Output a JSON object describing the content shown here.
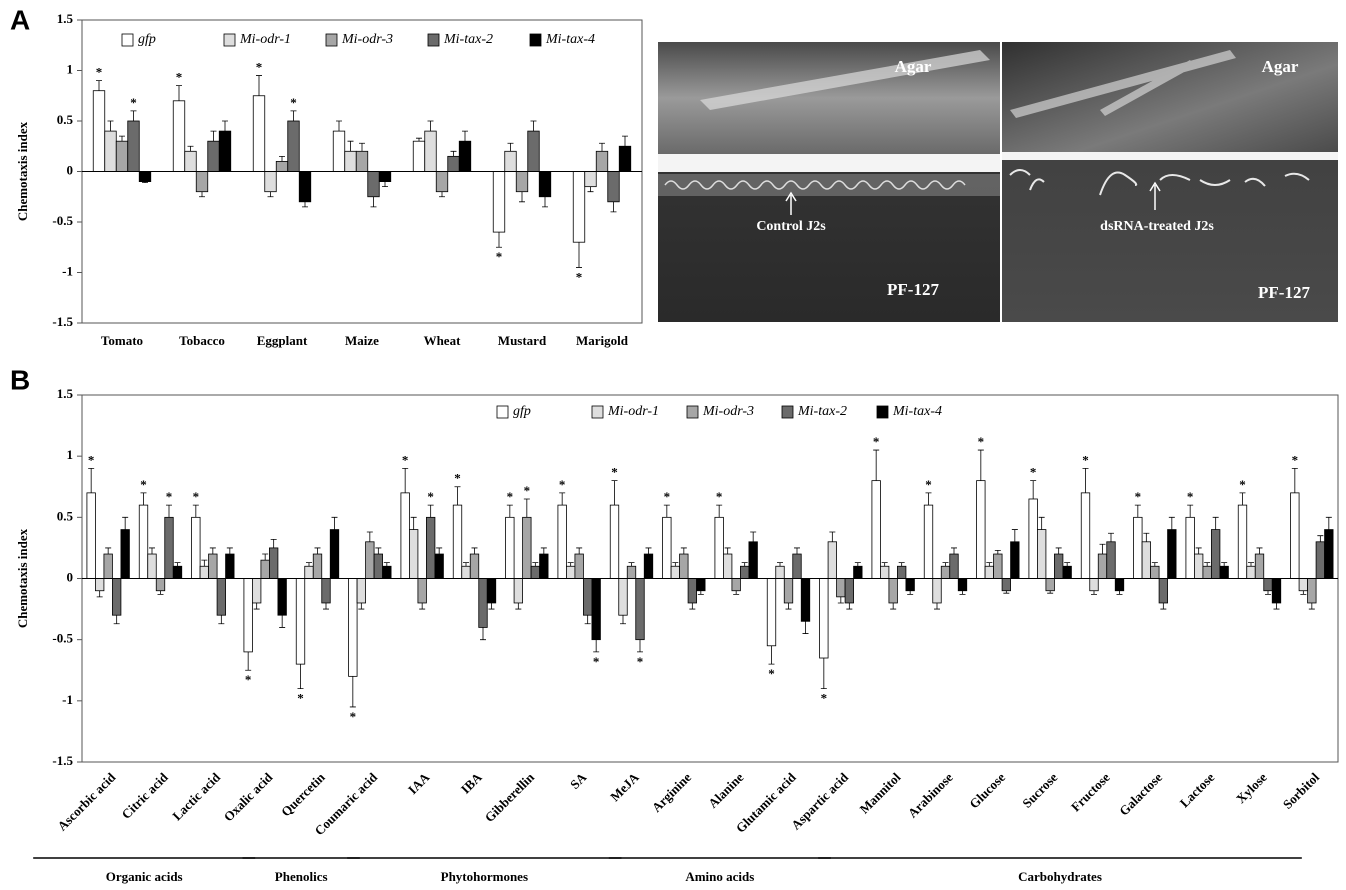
{
  "panel_labels": [
    "A",
    "B"
  ],
  "photo": {
    "left": {
      "top": "Agar",
      "arrow": "Control  J2s",
      "bottom": "PF-127"
    },
    "right": {
      "top": "Agar",
      "arrow": "dsRNA-treated J2s",
      "bottom": "PF-127"
    }
  },
  "chart_data": [
    {
      "type": "bar",
      "ylabel": "Chemotaxis index",
      "ylim": [
        -1.5,
        1.5
      ],
      "yticks": [
        1.5,
        1,
        0.5,
        0,
        -0.5,
        -1,
        -1.5
      ],
      "categories": [
        "Tomato",
        "Tobacco",
        "Eggplant",
        "Maize",
        "Wheat",
        "Mustard",
        "Marigold"
      ],
      "series": [
        {
          "name": "gfp",
          "color": "#ffffff",
          "values": [
            0.8,
            0.7,
            0.75,
            0.4,
            0.3,
            -0.6,
            -0.7
          ],
          "errors": [
            0.1,
            0.15,
            0.2,
            0.1,
            0.03,
            0.15,
            0.25
          ],
          "significance": [
            "*",
            "*",
            "*",
            null,
            null,
            "*",
            "*"
          ]
        },
        {
          "name": "Mi-odr-1",
          "color": "#dedede",
          "values": [
            0.4,
            0.2,
            -0.2,
            0.2,
            0.4,
            0.2,
            -0.15
          ],
          "errors": [
            0.1,
            0.05,
            0.05,
            0.1,
            0.1,
            0.08,
            0.05
          ],
          "significance": [
            null,
            null,
            null,
            null,
            null,
            null,
            null
          ]
        },
        {
          "name": "Mi-odr-3",
          "color": "#a6a6a6",
          "values": [
            0.3,
            -0.2,
            0.1,
            0.2,
            -0.2,
            -0.2,
            0.2
          ],
          "errors": [
            0.05,
            0.05,
            0.05,
            0.08,
            0.05,
            0.1,
            0.08
          ],
          "significance": [
            null,
            null,
            null,
            null,
            null,
            null,
            null
          ]
        },
        {
          "name": "Mi-tax-2",
          "color": "#6b6b6b",
          "values": [
            0.5,
            0.3,
            0.5,
            -0.25,
            0.15,
            0.4,
            -0.3
          ],
          "errors": [
            0.1,
            0.1,
            0.1,
            0.1,
            0.05,
            0.1,
            0.1
          ],
          "significance": [
            "*",
            null,
            "*",
            null,
            null,
            null,
            null
          ]
        },
        {
          "name": "Mi-tax-4",
          "color": "#000000",
          "values": [
            -0.1,
            0.4,
            -0.3,
            -0.1,
            0.3,
            -0.25,
            0.25
          ],
          "errors": [
            0.01,
            0.1,
            0.05,
            0.05,
            0.1,
            0.1,
            0.1
          ],
          "significance": [
            null,
            null,
            null,
            null,
            null,
            null,
            null
          ]
        }
      ]
    },
    {
      "type": "bar",
      "ylabel": "Chemotaxis index",
      "ylim": [
        -1.5,
        1.5
      ],
      "yticks": [
        1.5,
        1,
        0.5,
        0,
        -0.5,
        -1,
        -1.5
      ],
      "groups": [
        {
          "name": "Organic acids",
          "categories": [
            "Ascorbic acid",
            "Citric acid",
            "Lactic acid",
            "Oxalic acid"
          ]
        },
        {
          "name": "Phenolics",
          "categories": [
            "Quercetin",
            "Coumaric acid"
          ]
        },
        {
          "name": "Phytohormones",
          "categories": [
            "IAA",
            "IBA",
            "Gibberellin",
            "SA",
            "MeJA"
          ]
        },
        {
          "name": "Amino acids",
          "categories": [
            "Arginine",
            "Alanine",
            "Glutamic acid",
            "Aspartic acid"
          ]
        },
        {
          "name": "Carbohydrates",
          "categories": [
            "Mannitol",
            "Arabinose",
            "Glucose",
            "Sucrose",
            "Fructose",
            "Galactose",
            "Lactose",
            "Xylose",
            "Sorbitol"
          ]
        }
      ],
      "series": [
        {
          "name": "gfp",
          "color": "#ffffff",
          "values": [
            0.7,
            0.6,
            0.5,
            -0.6,
            -0.7,
            -0.8,
            0.7,
            0.6,
            0.5,
            0.6,
            0.6,
            0.5,
            0.5,
            -0.55,
            -0.65,
            0.8,
            0.6,
            0.8,
            0.65,
            0.7,
            0.5,
            0.5,
            0.6,
            0.7
          ],
          "errors": [
            0.2,
            0.1,
            0.1,
            0.15,
            0.2,
            0.25,
            0.2,
            0.15,
            0.1,
            0.1,
            0.2,
            0.1,
            0.1,
            0.15,
            0.25,
            0.25,
            0.1,
            0.25,
            0.15,
            0.2,
            0.1,
            0.1,
            0.1,
            0.2
          ],
          "significance": [
            "*",
            "*",
            "*",
            "*",
            "*",
            "*",
            "*",
            "*",
            "*",
            "*",
            "*",
            "*",
            "*",
            "*",
            "*",
            "*",
            "*",
            "*",
            "*",
            "*",
            "*",
            "*",
            "*",
            "*"
          ]
        },
        {
          "name": "Mi-odr-1",
          "color": "#dedede",
          "values": [
            -0.1,
            0.2,
            0.1,
            -0.2,
            0.1,
            -0.2,
            0.4,
            0.1,
            -0.2,
            0.1,
            -0.3,
            0.1,
            0.2,
            0.1,
            0.3,
            0.1,
            -0.2,
            0.1,
            0.4,
            -0.1,
            0.3,
            0.2,
            0.1,
            -0.1
          ],
          "errors": [
            0.05,
            0.05,
            0.05,
            0.05,
            0.03,
            0.05,
            0.1,
            0.03,
            0.05,
            0.03,
            0.07,
            0.03,
            0.05,
            0.03,
            0.08,
            0.03,
            0.05,
            0.03,
            0.1,
            0.03,
            0.07,
            0.05,
            0.03,
            0.03
          ],
          "significance": [
            null,
            null,
            null,
            null,
            null,
            null,
            null,
            null,
            null,
            null,
            null,
            null,
            null,
            null,
            null,
            null,
            null,
            null,
            null,
            null,
            null,
            null,
            null,
            null
          ]
        },
        {
          "name": "Mi-odr-3",
          "color": "#a6a6a6",
          "values": [
            0.2,
            -0.1,
            0.2,
            0.15,
            0.2,
            0.3,
            -0.2,
            0.2,
            0.5,
            0.2,
            0.1,
            0.2,
            -0.1,
            -0.2,
            -0.15,
            -0.2,
            0.1,
            0.2,
            -0.1,
            0.2,
            0.1,
            0.1,
            0.2,
            -0.2
          ],
          "errors": [
            0.05,
            0.03,
            0.05,
            0.05,
            0.05,
            0.08,
            0.05,
            0.05,
            0.15,
            0.05,
            0.03,
            0.05,
            0.03,
            0.05,
            0.05,
            0.05,
            0.03,
            0.03,
            0.02,
            0.08,
            0.03,
            0.03,
            0.05,
            0.05
          ],
          "significance": [
            null,
            null,
            null,
            null,
            null,
            null,
            null,
            null,
            "*",
            null,
            null,
            null,
            null,
            null,
            null,
            null,
            null,
            null,
            null,
            null,
            null,
            null,
            null,
            null
          ]
        },
        {
          "name": "Mi-tax-2",
          "color": "#6b6b6b",
          "values": [
            -0.3,
            0.5,
            -0.3,
            0.25,
            -0.2,
            0.2,
            0.5,
            -0.4,
            0.1,
            -0.3,
            -0.5,
            -0.2,
            0.1,
            0.2,
            -0.2,
            0.1,
            0.2,
            -0.1,
            0.2,
            0.3,
            -0.2,
            0.4,
            -0.1,
            0.3
          ],
          "errors": [
            0.07,
            0.1,
            0.07,
            0.07,
            0.05,
            0.05,
            0.1,
            0.1,
            0.03,
            0.07,
            0.1,
            0.05,
            0.03,
            0.05,
            0.05,
            0.03,
            0.05,
            0.02,
            0.05,
            0.07,
            0.05,
            0.1,
            0.03,
            0.05
          ],
          "significance": [
            null,
            "*",
            null,
            null,
            null,
            null,
            "*",
            null,
            null,
            null,
            "*",
            null,
            null,
            null,
            null,
            null,
            null,
            null,
            null,
            null,
            null,
            null,
            null,
            null
          ]
        },
        {
          "name": "Mi-tax-4",
          "color": "#000000",
          "values": [
            0.4,
            0.1,
            0.2,
            -0.3,
            0.4,
            0.1,
            0.2,
            -0.2,
            0.2,
            -0.5,
            0.2,
            -0.1,
            0.3,
            -0.35,
            0.1,
            -0.1,
            -0.1,
            0.3,
            0.1,
            -0.1,
            0.4,
            0.1,
            -0.2,
            0.4
          ],
          "errors": [
            0.1,
            0.03,
            0.05,
            0.1,
            0.1,
            0.03,
            0.05,
            0.05,
            0.05,
            0.1,
            0.05,
            0.03,
            0.08,
            0.1,
            0.03,
            0.03,
            0.03,
            0.1,
            0.03,
            0.03,
            0.1,
            0.03,
            0.05,
            0.1
          ],
          "significance": [
            null,
            null,
            null,
            null,
            null,
            null,
            null,
            null,
            null,
            "*",
            null,
            null,
            null,
            null,
            null,
            null,
            null,
            null,
            null,
            null,
            null,
            null,
            null,
            null
          ]
        }
      ]
    }
  ]
}
